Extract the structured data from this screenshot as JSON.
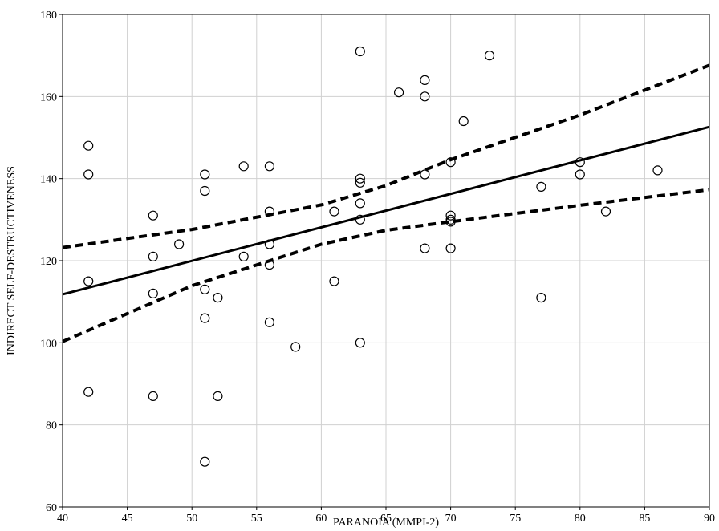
{
  "chart_data": {
    "type": "scatter",
    "title": "",
    "xlabel": "PARANOIA (MMPI-2)",
    "ylabel": "INDIRECT SELF-DESTRUCTIVENESS",
    "xlim": [
      40,
      90
    ],
    "ylim": [
      60,
      180
    ],
    "xticks": [
      40,
      45,
      50,
      55,
      60,
      65,
      70,
      75,
      80,
      85,
      90
    ],
    "yticks": [
      60,
      80,
      100,
      120,
      140,
      160,
      180
    ],
    "grid": true,
    "legend": "none",
    "points": [
      [
        42,
        148
      ],
      [
        42,
        141
      ],
      [
        42,
        115
      ],
      [
        42,
        88
      ],
      [
        47,
        131
      ],
      [
        47,
        121
      ],
      [
        47,
        112
      ],
      [
        47,
        87
      ],
      [
        49,
        124
      ],
      [
        51,
        141
      ],
      [
        51,
        137
      ],
      [
        51,
        113
      ],
      [
        51,
        106
      ],
      [
        51,
        71
      ],
      [
        52,
        111
      ],
      [
        52,
        87
      ],
      [
        54,
        143
      ],
      [
        54,
        121
      ],
      [
        56,
        143
      ],
      [
        56,
        132
      ],
      [
        56,
        124
      ],
      [
        56,
        119
      ],
      [
        56,
        105
      ],
      [
        58,
        99
      ],
      [
        61,
        132
      ],
      [
        61,
        115
      ],
      [
        63,
        171
      ],
      [
        63,
        140
      ],
      [
        63,
        139
      ],
      [
        63,
        134
      ],
      [
        63,
        130
      ],
      [
        63,
        100
      ],
      [
        66,
        161
      ],
      [
        68,
        164
      ],
      [
        68,
        160
      ],
      [
        68,
        141
      ],
      [
        68,
        123
      ],
      [
        70,
        144
      ],
      [
        70,
        131
      ],
      [
        70,
        130
      ],
      [
        70,
        129.5
      ],
      [
        70,
        123
      ],
      [
        71,
        154
      ],
      [
        73,
        170
      ],
      [
        77,
        138
      ],
      [
        77,
        111
      ],
      [
        80,
        144
      ],
      [
        80,
        141
      ],
      [
        82,
        132
      ],
      [
        86,
        142
      ]
    ],
    "regression_line": {
      "x": [
        40,
        90
      ],
      "y": [
        111.8,
        152.6
      ]
    },
    "confidence_band": {
      "x": [
        40,
        50,
        60,
        65,
        70,
        80,
        90
      ],
      "upper": [
        123.2,
        127.6,
        133.6,
        138.3,
        144.6,
        155.5,
        167.6
      ],
      "lower": [
        100.3,
        113.9,
        124.0,
        127.4,
        129.5,
        133.5,
        137.3
      ]
    },
    "colors": {
      "points": "#000000",
      "line": "#000000",
      "grid": "#d0d0d0",
      "frame": "#000000"
    }
  }
}
